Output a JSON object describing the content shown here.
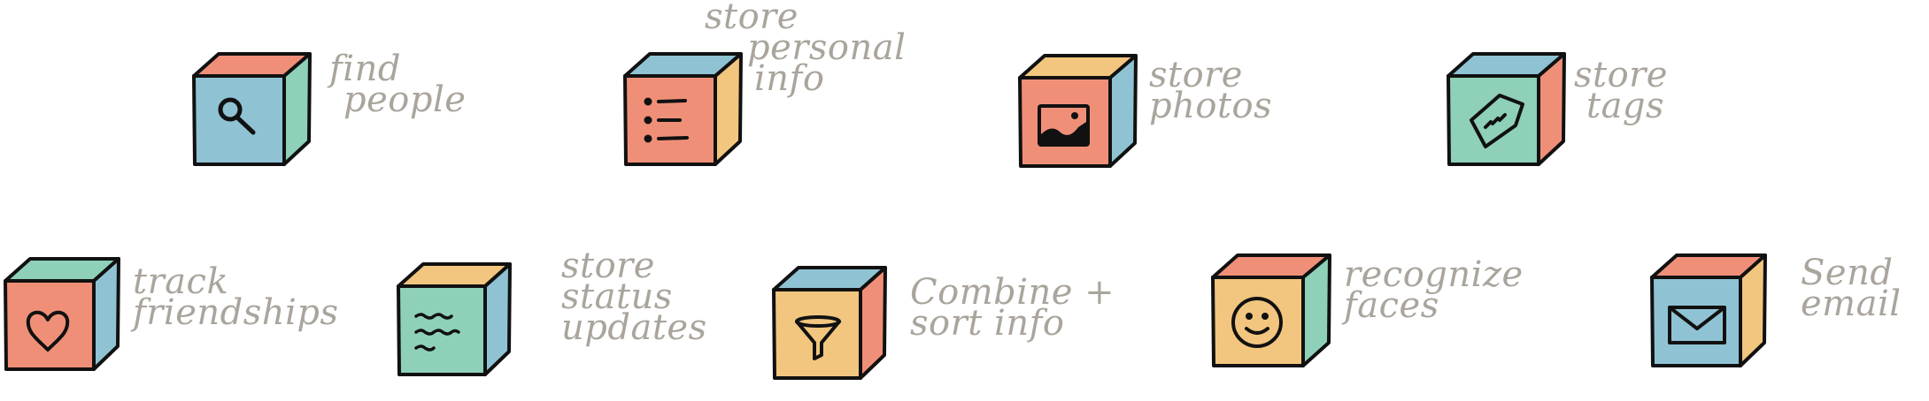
{
  "colors": {
    "blue": "#8fc3d3",
    "red": "#f08f78",
    "green": "#8ed0b8",
    "yellow": "#f2c67f",
    "outline": "#111111",
    "label": "#aaa59c"
  },
  "items": [
    {
      "id": "find-people",
      "icon": "magnifier-icon",
      "front": "blue",
      "top": "red",
      "side": "green",
      "label": [
        "find",
        "people"
      ]
    },
    {
      "id": "store-personal-info",
      "icon": "list-icon",
      "front": "red",
      "top": "blue",
      "side": "yellow",
      "label": [
        "store",
        "personal",
        "info"
      ]
    },
    {
      "id": "store-photos",
      "icon": "photo-icon",
      "front": "red",
      "top": "yellow",
      "side": "blue",
      "label": [
        "store",
        "photos"
      ]
    },
    {
      "id": "store-tags",
      "icon": "tag-icon",
      "front": "green",
      "top": "blue",
      "side": "red",
      "label": [
        "store",
        "tags"
      ]
    },
    {
      "id": "track-friendships",
      "icon": "heart-icon",
      "front": "red",
      "top": "green",
      "side": "blue",
      "label": [
        "track",
        "friendships"
      ]
    },
    {
      "id": "store-status-updates",
      "icon": "text-lines-icon",
      "front": "green",
      "top": "yellow",
      "side": "blue",
      "label": [
        "store",
        "status",
        "updates"
      ]
    },
    {
      "id": "combine-sort-info",
      "icon": "funnel-icon",
      "front": "yellow",
      "top": "blue",
      "side": "red",
      "label": [
        "Combine +",
        "sort info"
      ]
    },
    {
      "id": "recognize-faces",
      "icon": "smiley-icon",
      "front": "yellow",
      "top": "red",
      "side": "green",
      "label": [
        "recognize",
        "faces"
      ]
    },
    {
      "id": "send-email",
      "icon": "envelope-icon",
      "front": "blue",
      "top": "red",
      "side": "yellow",
      "label": [
        "Send",
        "email"
      ]
    }
  ]
}
